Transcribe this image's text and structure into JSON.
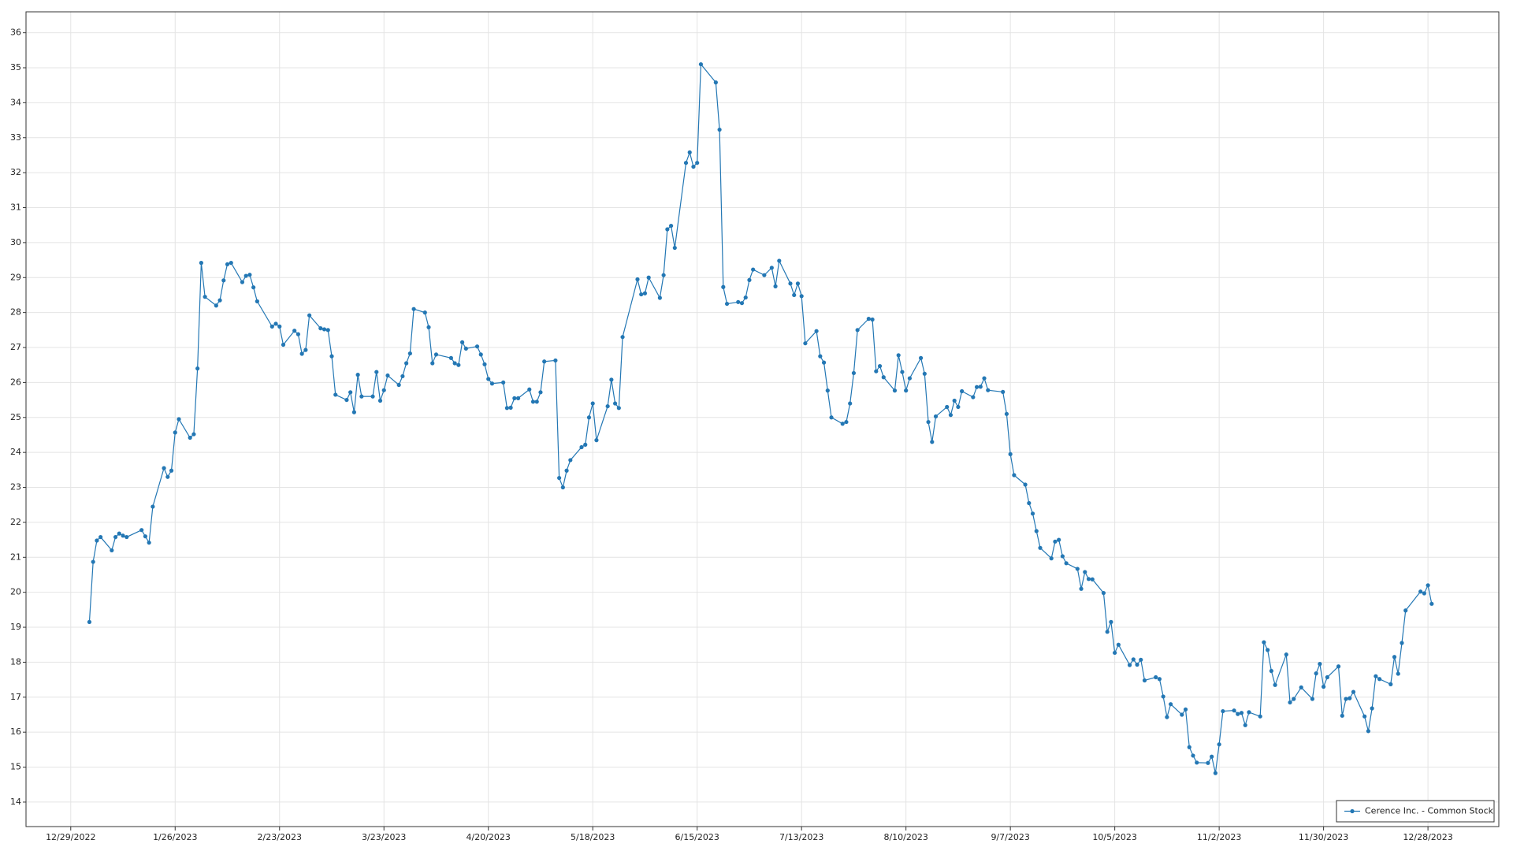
{
  "chart_data": {
    "type": "line",
    "x": [
      "1/3/2023",
      "1/4/2023",
      "1/5/2023",
      "1/6/2023",
      "1/9/2023",
      "1/10/2023",
      "1/11/2023",
      "1/12/2023",
      "1/13/2023",
      "1/17/2023",
      "1/18/2023",
      "1/19/2023",
      "1/20/2023",
      "1/23/2023",
      "1/24/2023",
      "1/25/2023",
      "1/26/2023",
      "1/27/2023",
      "1/30/2023",
      "1/31/2023",
      "2/1/2023",
      "2/2/2023",
      "2/3/2023",
      "2/6/2023",
      "2/7/2023",
      "2/8/2023",
      "2/9/2023",
      "2/10/2023",
      "2/13/2023",
      "2/14/2023",
      "2/15/2023",
      "2/16/2023",
      "2/17/2023",
      "2/21/2023",
      "2/22/2023",
      "2/23/2023",
      "2/24/2023",
      "2/27/2023",
      "2/28/2023",
      "3/1/2023",
      "3/2/2023",
      "3/3/2023",
      "3/6/2023",
      "3/7/2023",
      "3/8/2023",
      "3/9/2023",
      "3/10/2023",
      "3/13/2023",
      "3/14/2023",
      "3/15/2023",
      "3/16/2023",
      "3/17/2023",
      "3/20/2023",
      "3/21/2023",
      "3/22/2023",
      "3/23/2023",
      "3/24/2023",
      "3/27/2023",
      "3/28/2023",
      "3/29/2023",
      "3/30/2023",
      "3/31/2023",
      "4/3/2023",
      "4/4/2023",
      "4/5/2023",
      "4/6/2023",
      "4/10/2023",
      "4/11/2023",
      "4/12/2023",
      "4/13/2023",
      "4/14/2023",
      "4/17/2023",
      "4/18/2023",
      "4/19/2023",
      "4/20/2023",
      "4/21/2023",
      "4/24/2023",
      "4/25/2023",
      "4/26/2023",
      "4/27/2023",
      "4/28/2023",
      "5/1/2023",
      "5/2/2023",
      "5/3/2023",
      "5/4/2023",
      "5/5/2023",
      "5/8/2023",
      "5/9/2023",
      "5/10/2023",
      "5/11/2023",
      "5/12/2023",
      "5/15/2023",
      "5/16/2023",
      "5/17/2023",
      "5/18/2023",
      "5/19/2023",
      "5/22/2023",
      "5/23/2023",
      "5/24/2023",
      "5/25/2023",
      "5/26/2023",
      "5/30/2023",
      "5/31/2023",
      "6/1/2023",
      "6/2/2023",
      "6/5/2023",
      "6/6/2023",
      "6/7/2023",
      "6/8/2023",
      "6/9/2023",
      "6/12/2023",
      "6/13/2023",
      "6/14/2023",
      "6/15/2023",
      "6/16/2023",
      "6/20/2023",
      "6/21/2023",
      "6/22/2023",
      "6/23/2023",
      "6/26/2023",
      "6/27/2023",
      "6/28/2023",
      "6/29/2023",
      "6/30/2023",
      "7/3/2023",
      "7/5/2023",
      "7/6/2023",
      "7/7/2023",
      "7/10/2023",
      "7/11/2023",
      "7/12/2023",
      "7/13/2023",
      "7/14/2023",
      "7/17/2023",
      "7/18/2023",
      "7/19/2023",
      "7/20/2023",
      "7/21/2023",
      "7/24/2023",
      "7/25/2023",
      "7/26/2023",
      "7/27/2023",
      "7/28/2023",
      "7/31/2023",
      "8/1/2023",
      "8/2/2023",
      "8/3/2023",
      "8/4/2023",
      "8/7/2023",
      "8/8/2023",
      "8/9/2023",
      "8/10/2023",
      "8/11/2023",
      "8/14/2023",
      "8/15/2023",
      "8/16/2023",
      "8/17/2023",
      "8/18/2023",
      "8/21/2023",
      "8/22/2023",
      "8/23/2023",
      "8/24/2023",
      "8/25/2023",
      "8/28/2023",
      "8/29/2023",
      "8/30/2023",
      "8/31/2023",
      "9/1/2023",
      "9/5/2023",
      "9/6/2023",
      "9/7/2023",
      "9/8/2023",
      "9/11/2023",
      "9/12/2023",
      "9/13/2023",
      "9/14/2023",
      "9/15/2023",
      "9/18/2023",
      "9/19/2023",
      "9/20/2023",
      "9/21/2023",
      "9/22/2023",
      "9/25/2023",
      "9/26/2023",
      "9/27/2023",
      "9/28/2023",
      "9/29/2023",
      "10/2/2023",
      "10/3/2023",
      "10/4/2023",
      "10/5/2023",
      "10/6/2023",
      "10/9/2023",
      "10/10/2023",
      "10/11/2023",
      "10/12/2023",
      "10/13/2023",
      "10/16/2023",
      "10/17/2023",
      "10/18/2023",
      "10/19/2023",
      "10/20/2023",
      "10/23/2023",
      "10/24/2023",
      "10/25/2023",
      "10/26/2023",
      "10/27/2023",
      "10/30/2023",
      "10/31/2023",
      "11/1/2023",
      "11/2/2023",
      "11/3/2023",
      "11/6/2023",
      "11/7/2023",
      "11/8/2023",
      "11/9/2023",
      "11/10/2023",
      "11/13/2023",
      "11/14/2023",
      "11/15/2023",
      "11/16/2023",
      "11/17/2023",
      "11/20/2023",
      "11/21/2023",
      "11/22/2023",
      "11/24/2023",
      "11/27/2023",
      "11/28/2023",
      "11/29/2023",
      "11/30/2023",
      "12/1/2023",
      "12/4/2023",
      "12/5/2023",
      "12/6/2023",
      "12/7/2023",
      "12/8/2023",
      "12/11/2023",
      "12/12/2023",
      "12/13/2023",
      "12/14/2023",
      "12/15/2023",
      "12/18/2023",
      "12/19/2023",
      "12/20/2023",
      "12/21/2023",
      "12/22/2023",
      "12/26/2023",
      "12/27/2023",
      "12/28/2023",
      "12/29/2023"
    ],
    "series": [
      {
        "name": "Cerence Inc. - Common Stock",
        "color": "#2377b4",
        "values": [
          19.15,
          20.87,
          21.48,
          21.58,
          21.2,
          21.58,
          21.68,
          21.62,
          21.58,
          21.78,
          21.6,
          21.42,
          22.45,
          23.55,
          23.3,
          23.48,
          24.57,
          24.95,
          24.42,
          24.52,
          26.4,
          29.42,
          28.45,
          28.2,
          28.35,
          28.92,
          29.38,
          29.42,
          28.87,
          29.05,
          29.08,
          28.72,
          28.32,
          27.6,
          27.68,
          27.6,
          27.08,
          27.48,
          27.38,
          26.82,
          26.93,
          27.92,
          27.55,
          27.52,
          27.5,
          26.75,
          25.65,
          25.5,
          25.72,
          25.15,
          26.22,
          25.6,
          25.6,
          26.3,
          25.48,
          25.78,
          26.2,
          25.93,
          26.18,
          26.55,
          26.83,
          28.1,
          28.0,
          27.58,
          26.55,
          26.8,
          26.7,
          26.55,
          26.5,
          27.15,
          26.97,
          27.03,
          26.8,
          26.52,
          26.1,
          25.97,
          26.0,
          25.27,
          25.28,
          25.55,
          25.55,
          25.8,
          25.45,
          25.45,
          25.72,
          26.6,
          26.63,
          23.27,
          23.0,
          23.48,
          23.78,
          24.15,
          24.22,
          25.0,
          25.4,
          24.35,
          25.32,
          26.08,
          25.4,
          25.27,
          27.3,
          28.95,
          28.52,
          28.55,
          29.0,
          28.42,
          29.07,
          30.38,
          30.48,
          29.85,
          32.28,
          32.58,
          32.17,
          32.28,
          35.1,
          34.58,
          33.23,
          28.73,
          28.25,
          28.3,
          28.27,
          28.43,
          28.93,
          29.23,
          29.07,
          29.28,
          28.75,
          29.48,
          28.83,
          28.5,
          28.83,
          28.47,
          27.12,
          27.47,
          26.75,
          26.57,
          25.77,
          25.0,
          24.82,
          24.87,
          25.4,
          26.27,
          27.5,
          27.82,
          27.8,
          26.32,
          26.47,
          26.15,
          25.77,
          26.78,
          26.3,
          25.77,
          26.12,
          26.7,
          26.25,
          24.87,
          24.3,
          25.03,
          25.3,
          25.07,
          25.48,
          25.3,
          25.75,
          25.58,
          25.87,
          25.88,
          26.12,
          25.78,
          25.73,
          25.1,
          23.95,
          23.35,
          23.08,
          22.55,
          22.25,
          21.75,
          21.27,
          20.97,
          21.45,
          21.5,
          21.03,
          20.83,
          20.67,
          20.1,
          20.58,
          20.38,
          20.37,
          19.98,
          18.87,
          19.15,
          18.27,
          18.5,
          17.92,
          18.08,
          17.93,
          18.07,
          17.48,
          17.57,
          17.52,
          17.02,
          16.43,
          16.8,
          16.5,
          16.65,
          15.57,
          15.33,
          15.13,
          15.12,
          15.3,
          14.83,
          15.65,
          16.6,
          16.62,
          16.52,
          16.55,
          16.2,
          16.57,
          16.45,
          18.57,
          18.35,
          17.75,
          17.35,
          18.22,
          16.85,
          16.95,
          17.28,
          16.95,
          17.68,
          17.95,
          17.3,
          17.57,
          17.88,
          16.47,
          16.95,
          16.97,
          17.15,
          16.45,
          16.03,
          16.68,
          17.6,
          17.52,
          17.37,
          18.15,
          17.67,
          18.55,
          19.48,
          20.02,
          19.97,
          20.2,
          19.67
        ]
      }
    ],
    "xlim": [
      "12/17/2022",
      "1/16/2024"
    ],
    "xticks": [
      "12/29/2022",
      "1/26/2023",
      "2/23/2023",
      "3/23/2023",
      "4/20/2023",
      "5/18/2023",
      "6/15/2023",
      "7/13/2023",
      "8/10/2023",
      "9/7/2023",
      "10/5/2023",
      "11/2/2023",
      "11/30/2023",
      "12/28/2023"
    ],
    "ylim": [
      13.3,
      36.6
    ],
    "yticks": [
      14,
      15,
      16,
      17,
      18,
      19,
      20,
      21,
      22,
      23,
      24,
      25,
      26,
      27,
      28,
      29,
      30,
      31,
      32,
      33,
      34,
      35,
      36
    ],
    "grid": true,
    "legend": "bottom-right"
  }
}
